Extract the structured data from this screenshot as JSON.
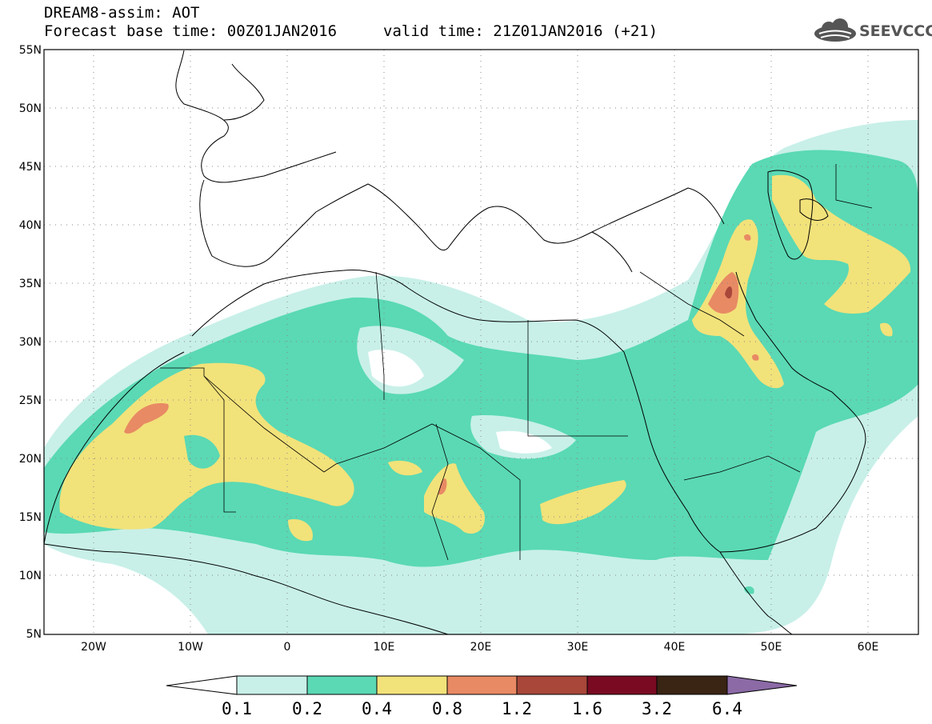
{
  "header": {
    "title": "DREAM8-assim: AOT",
    "base_time": "Forecast base time: 00Z01JAN2016",
    "valid_time": "valid time: 21Z01JAN2016 (+21)",
    "logo_text": "SEEVCCC",
    "logo_icon": "cloud-icon"
  },
  "map": {
    "lat_labels": [
      "55N",
      "50N",
      "45N",
      "40N",
      "35N",
      "30N",
      "25N",
      "20N",
      "15N",
      "10N",
      "5N"
    ],
    "lon_labels": [
      "20W",
      "10W",
      "0",
      "10E",
      "20E",
      "30E",
      "40E",
      "50E",
      "60E"
    ],
    "grid": "dotted"
  },
  "colorbar": {
    "labels": [
      "0.1",
      "0.2",
      "0.4",
      "0.8",
      "1.2",
      "1.6",
      "3.2",
      "6.4"
    ],
    "colors": [
      "#c8f0e8",
      "#5ad9b4",
      "#f2e27a",
      "#e88a64",
      "#a8473a",
      "#7a0a22",
      "#3a2414",
      "#8b6aa6"
    ]
  }
}
